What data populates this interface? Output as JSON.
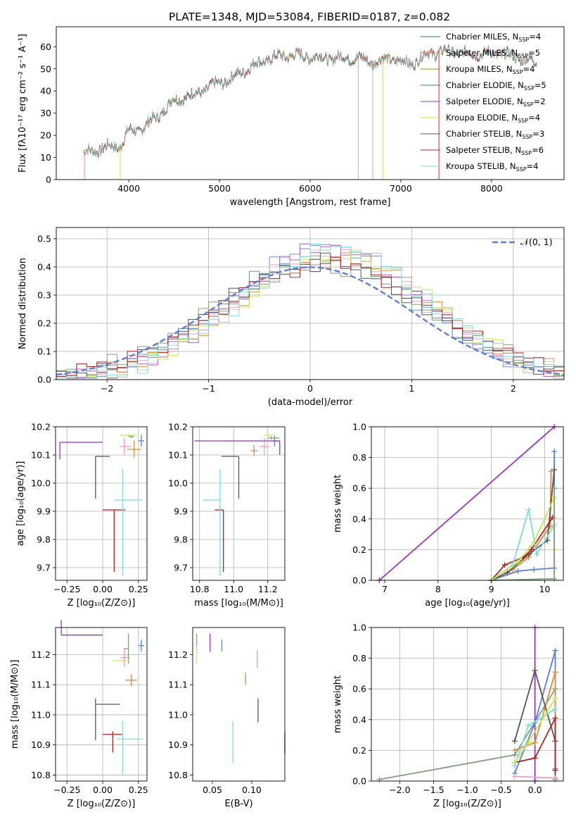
{
  "figure_title": "PLATE=1348, MJD=53084, FIBERID=0187, z=0.082",
  "model_colors": [
    "#1f77b4",
    "#ff7f7f",
    "#b8860b",
    "#2e8b57",
    "#9932cc",
    "#d4d434",
    "#555555",
    "#b22222",
    "#7fdbdb"
  ],
  "chart_data": [
    {
      "id": "spectrum",
      "type": "line",
      "xlabel": "wavelength [Angstrom, rest frame]",
      "ylabel": "Flux [fλ10⁻¹⁷ erg cm⁻² s⁻¹ A⁻¹]",
      "xlim": [
        3200,
        8800
      ],
      "ylim": [
        0,
        69
      ],
      "xticks": [
        4000,
        5000,
        6000,
        7000,
        8000
      ],
      "yticks": [
        0,
        10,
        20,
        30,
        40,
        50,
        60
      ],
      "grid": false,
      "legend": "right",
      "continuum_x": [
        3500,
        3800,
        3900,
        4000,
        4100,
        4300,
        4500,
        4700,
        4900,
        5100,
        5300,
        5500,
        5700,
        5900,
        6100,
        6300,
        6500,
        6700,
        6900,
        7100,
        7300,
        7500,
        7700,
        7900,
        8100,
        8300,
        8500
      ],
      "continuum_y": [
        12,
        15,
        15,
        22,
        22,
        28,
        36,
        38,
        42,
        45,
        50,
        54,
        56,
        56,
        55,
        55,
        55,
        53,
        55,
        52,
        57,
        58,
        57,
        57,
        57,
        55,
        53
      ],
      "legend_entries": [
        {
          "label": "Chabrier MILES, N",
          "sub": "SSP",
          "rest": "=4"
        },
        {
          "label": "Salpeter MILES, N",
          "sub": "SSP",
          "rest": "=5"
        },
        {
          "label": "Kroupa MILES, N",
          "sub": "SSP",
          "rest": "=4"
        },
        {
          "label": "Chabrier ELODIE, N",
          "sub": "SSP",
          "rest": "=5"
        },
        {
          "label": "Salpeter ELODIE, N",
          "sub": "SSP",
          "rest": "=2"
        },
        {
          "label": "Kroupa ELODIE, N",
          "sub": "SSP",
          "rest": "=4"
        },
        {
          "label": "Chabrier STELIB, N",
          "sub": "SSP",
          "rest": "=3"
        },
        {
          "label": "Salpeter STELIB, N",
          "sub": "SSP",
          "rest": "=6"
        },
        {
          "label": "Kroupa STELIB, N",
          "sub": "SSP",
          "rest": "=4"
        }
      ]
    },
    {
      "id": "residuals",
      "type": "line",
      "xlabel": "(data-model)/error",
      "ylabel": "Normed distribution",
      "xlim": [
        -2.5,
        2.5
      ],
      "ylim": [
        0,
        0.54
      ],
      "xticks": [
        -2,
        -1,
        0,
        1,
        2
      ],
      "yticks": [
        0.0,
        0.1,
        0.2,
        0.3,
        0.4,
        0.5
      ],
      "grid": true,
      "legend_label": "𝒩(0, 1)",
      "gaussian_color": "#5b7fd6",
      "hist_colors": [
        "#6a8fd8",
        "#f09ac6",
        "#e08a3c",
        "#7fa07f",
        "#a06bc0",
        "#c7e650",
        "#555555",
        "#b22222",
        "#7fdbdb"
      ]
    },
    {
      "id": "age_vs_Z",
      "type": "scatter",
      "xlabel": "Z [log₁₀(Z/Z⊙)]",
      "ylabel": "age  [log₁₀(age/yr)]",
      "xlim": [
        -0.33,
        0.31
      ],
      "ylim": [
        9.655,
        10.2
      ],
      "xticks": [
        -0.25,
        0.0,
        0.25
      ],
      "yticks": [
        9.7,
        9.8,
        9.9,
        10.0,
        10.1,
        10.2
      ],
      "grid": true,
      "points": [
        {
          "x": 0.27,
          "y": 10.15,
          "xe": [
            0.02,
            0.02
          ],
          "ye": [
            0.02,
            0.02
          ],
          "c": "#5b7fd6"
        },
        {
          "x": 0.22,
          "y": 10.12,
          "xe": [
            0.05,
            0.05
          ],
          "ye": [
            0.03,
            0.03
          ],
          "c": "#e08a3c"
        },
        {
          "x": 0.15,
          "y": 10.13,
          "xe": [
            0.03,
            0.05
          ],
          "ye": [
            0.03,
            0.03
          ],
          "c": "#f09ac6"
        },
        {
          "x": 0.2,
          "y": 10.165,
          "xe": [
            0.02,
            0.02
          ],
          "ye": [
            0.005,
            0.005
          ],
          "c": "#7fa07f"
        },
        {
          "x": 0.18,
          "y": 10.17,
          "xe": [
            0.06,
            0.06
          ],
          "ye": [
            0.005,
            0.005
          ],
          "c": "#c7e650"
        },
        {
          "x": -0.3,
          "y": 10.145,
          "xe": [
            0.0,
            0.3
          ],
          "ye": [
            0.06,
            0.0
          ],
          "c": "#9932cc"
        },
        {
          "x": -0.05,
          "y": 10.095,
          "xe": [
            0.0,
            0.1
          ],
          "ye": [
            0.15,
            0.0
          ],
          "c": "#555555"
        },
        {
          "x": 0.08,
          "y": 9.905,
          "xe": [
            0.08,
            0.08
          ],
          "ye": [
            0.22,
            0.0
          ],
          "c": "#b22222"
        },
        {
          "x": 0.14,
          "y": 9.94,
          "xe": [
            0.06,
            0.14
          ],
          "ye": [
            0.27,
            0.11
          ],
          "c": "#7fdbdb"
        }
      ]
    },
    {
      "id": "age_vs_mass",
      "type": "scatter",
      "xlabel": "mass [log₁₀(M/M⊙)]",
      "ylabel": "",
      "xlim": [
        10.76,
        11.3
      ],
      "ylim": [
        9.655,
        10.2
      ],
      "xticks": [
        10.8,
        11.0,
        11.2
      ],
      "yticks": [
        9.7,
        9.8,
        9.9,
        10.0,
        10.1,
        10.2
      ],
      "grid": true,
      "points": [
        {
          "x": 11.24,
          "y": 10.15,
          "xe": [
            0.02,
            0.03
          ],
          "ye": [
            0.02,
            0.02
          ],
          "c": "#5b7fd6"
        },
        {
          "x": 11.12,
          "y": 10.115,
          "xe": [
            0.02,
            0.02
          ],
          "ye": [
            0.02,
            0.02
          ],
          "c": "#e08a3c"
        },
        {
          "x": 11.18,
          "y": 10.13,
          "xe": [
            0.03,
            0.03
          ],
          "ye": [
            0.03,
            0.03
          ],
          "c": "#f09ac6"
        },
        {
          "x": 11.22,
          "y": 10.16,
          "xe": [
            0.02,
            0.05
          ],
          "ye": [
            0.005,
            0.005
          ],
          "c": "#7fa07f"
        },
        {
          "x": 11.2,
          "y": 10.17,
          "xe": [
            0.02,
            0.03
          ],
          "ye": [
            0.005,
            0.005
          ],
          "c": "#c7e650"
        },
        {
          "x": 11.27,
          "y": 10.15,
          "xe": [
            0.5,
            0.0
          ],
          "ye": [
            0.05,
            0.0
          ],
          "c": "#9932cc"
        },
        {
          "x": 11.03,
          "y": 10.095,
          "xe": [
            0.1,
            0.0
          ],
          "ye": [
            0.15,
            0.0
          ],
          "c": "#555555"
        },
        {
          "x": 10.94,
          "y": 9.905,
          "xe": [
            0.05,
            0.0
          ],
          "ye": [
            0.22,
            0.0
          ],
          "c": "#b22222"
        },
        {
          "x": 10.92,
          "y": 9.94,
          "xe": [
            0.1,
            0.0
          ],
          "ye": [
            0.27,
            0.11
          ],
          "c": "#7fdbdb"
        }
      ]
    },
    {
      "id": "mass_vs_Z",
      "type": "scatter",
      "xlabel": "Z [log₁₀(Z/Z⊙)]",
      "ylabel": "mass [log₁₀(M/M⊙)]",
      "xlim": [
        -0.33,
        0.31
      ],
      "ylim": [
        10.78,
        11.29
      ],
      "xticks": [
        -0.25,
        0.0,
        0.25
      ],
      "yticks": [
        10.8,
        10.9,
        11.0,
        11.1,
        11.2
      ],
      "grid": true,
      "points": [
        {
          "x": 0.27,
          "y": 11.23,
          "xe": [
            0.02,
            0.02
          ],
          "ye": [
            0.02,
            0.02
          ],
          "c": "#5b7fd6"
        },
        {
          "x": 0.2,
          "y": 11.115,
          "xe": [
            0.04,
            0.04
          ],
          "ye": [
            0.02,
            0.02
          ],
          "c": "#e08a3c"
        },
        {
          "x": 0.15,
          "y": 11.19,
          "xe": [
            0.03,
            0.04
          ],
          "ye": [
            0.03,
            0.03
          ],
          "c": "#f09ac6"
        },
        {
          "x": 0.18,
          "y": 11.22,
          "xe": [
            0.03,
            0.0
          ],
          "ye": [
            0.05,
            0.05
          ],
          "c": "#7fa07f"
        },
        {
          "x": 0.12,
          "y": 11.18,
          "xe": [
            0.05,
            0.05
          ],
          "ye": [
            0.0,
            0.0
          ],
          "c": "#c7e650"
        },
        {
          "x": -0.29,
          "y": 11.265,
          "xe": [
            0.0,
            0.29
          ],
          "ye": [
            0.0,
            0.05
          ],
          "c": "#9932cc"
        },
        {
          "x": -0.05,
          "y": 11.035,
          "xe": [
            0.0,
            0.17
          ],
          "ye": [
            0.12,
            0.02
          ],
          "c": "#555555"
        },
        {
          "x": 0.07,
          "y": 10.935,
          "xe": [
            0.07,
            0.07
          ],
          "ye": [
            0.06,
            0.01
          ],
          "c": "#b22222"
        },
        {
          "x": 0.14,
          "y": 10.92,
          "xe": [
            0.04,
            0.14
          ],
          "ye": [
            0.12,
            0.06
          ],
          "c": "#7fdbdb"
        }
      ]
    },
    {
      "id": "mass_vs_ebv",
      "type": "scatter",
      "xlabel": "E(B-V)",
      "ylabel": "",
      "xlim": [
        0.025,
        0.142
      ],
      "ylim": [
        10.78,
        11.29
      ],
      "xticks": [
        0.05,
        0.1
      ],
      "yticks": [
        10.8,
        10.9,
        11.0,
        11.1,
        11.2
      ],
      "grid": false,
      "points": [
        {
          "x": 0.062,
          "y": 11.23,
          "ye": [
            0.02,
            0.02
          ],
          "c": "#5b7fd6"
        },
        {
          "x": 0.092,
          "y": 11.12,
          "ye": [
            0.02,
            0.02
          ],
          "c": "#e08a3c"
        },
        {
          "x": 0.107,
          "y": 11.185,
          "ye": [
            0.03,
            0.03
          ],
          "c": "#f09ac6"
        },
        {
          "x": 0.03,
          "y": 11.24,
          "ye": [
            0.03,
            0.03
          ],
          "c": "#7fa07f"
        },
        {
          "x": 0.03,
          "y": 11.2,
          "ye": [
            0.03,
            0.03
          ],
          "c": "#c7e650"
        },
        {
          "x": 0.047,
          "y": 11.24,
          "ye": [
            0.03,
            0.03
          ],
          "c": "#9932cc"
        },
        {
          "x": 0.108,
          "y": 11.015,
          "ye": [
            0.04,
            0.04
          ],
          "c": "#555555"
        },
        {
          "x": 0.142,
          "y": 10.91,
          "ye": [
            0.04,
            0.03
          ],
          "c": "#b22222"
        },
        {
          "x": 0.076,
          "y": 10.91,
          "ye": [
            0.07,
            0.07
          ],
          "c": "#7fdbdb"
        }
      ]
    },
    {
      "id": "mw_vs_age",
      "type": "line",
      "xlabel": "age  [log₁₀(age/yr)]",
      "ylabel": "mass weight",
      "xlim": [
        6.75,
        10.35
      ],
      "ylim": [
        0,
        1.0
      ],
      "xticks": [
        7,
        8,
        9,
        10
      ],
      "yticks": [
        0.0,
        0.2,
        0.4,
        0.6,
        0.8,
        1.0
      ],
      "grid": true,
      "series": [
        {
          "c": "#9932cc",
          "x": [
            6.9,
            10.18
          ],
          "y": [
            0.0,
            1.0
          ]
        },
        {
          "c": "#5b7fd6",
          "x": [
            9.0,
            9.5,
            9.8,
            10.18,
            10.18
          ],
          "y": [
            0.0,
            0.06,
            0.07,
            0.08,
            0.84
          ]
        },
        {
          "c": "#e08a3c",
          "x": [
            9.0,
            9.4,
            9.7,
            10.1,
            10.12
          ],
          "y": [
            0.0,
            0.07,
            0.15,
            0.35,
            0.71
          ]
        },
        {
          "c": "#555555",
          "x": [
            9.0,
            9.3,
            9.7,
            10.05,
            10.18
          ],
          "y": [
            0.0,
            0.05,
            0.17,
            0.26,
            0.72
          ]
        },
        {
          "c": "#b22222",
          "x": [
            9.0,
            9.25,
            9.6,
            9.75,
            10.15
          ],
          "y": [
            0.0,
            0.1,
            0.15,
            0.2,
            0.41
          ]
        },
        {
          "c": "#7fdbdb",
          "x": [
            9.0,
            9.4,
            9.7,
            9.85,
            10.18
          ],
          "y": [
            0.0,
            0.1,
            0.46,
            0.17,
            0.36
          ]
        },
        {
          "c": "#c7e650",
          "x": [
            9.0,
            9.5,
            9.8,
            10.18,
            10.18
          ],
          "y": [
            0.0,
            0.12,
            0.25,
            0.54,
            0.2
          ]
        },
        {
          "c": "#7fa07f",
          "x": [
            9.0,
            10.18,
            10.18
          ],
          "y": [
            0.0,
            0.01,
            0.6
          ]
        }
      ]
    },
    {
      "id": "mw_vs_Z",
      "type": "line",
      "xlabel": "Z [log₁₀(Z/Z⊙)]",
      "ylabel": "mass weight",
      "xlim": [
        -2.42,
        0.42
      ],
      "ylim": [
        0,
        1.0
      ],
      "xticks": [
        -2.0,
        -1.5,
        -1.0,
        -0.5,
        0.0
      ],
      "yticks": [
        0.0,
        0.2,
        0.4,
        0.6,
        0.8,
        1.0
      ],
      "grid": true,
      "series": [
        {
          "c": "#7fa07f",
          "x": [
            -2.3,
            -0.3,
            0.3,
            0.3
          ],
          "y": [
            0.01,
            0.17,
            0.6,
            0.01
          ]
        },
        {
          "c": "#9932cc",
          "x": [
            0.0,
            0.0
          ],
          "y": [
            1.0,
            0.0
          ]
        },
        {
          "c": "#5b7fd6",
          "x": [
            -0.3,
            0.0,
            0.3,
            0.3
          ],
          "y": [
            0.05,
            0.38,
            0.85,
            0.08
          ]
        },
        {
          "c": "#e08a3c",
          "x": [
            -0.3,
            0.0,
            0.3,
            0.3
          ],
          "y": [
            0.2,
            0.25,
            0.71,
            0.07
          ]
        },
        {
          "c": "#555555",
          "x": [
            -0.3,
            0.0,
            0.3,
            0.3
          ],
          "y": [
            0.26,
            0.72,
            0.26,
            0.02
          ]
        },
        {
          "c": "#b22222",
          "x": [
            -0.3,
            0.0,
            0.3,
            0.3
          ],
          "y": [
            0.12,
            0.15,
            0.41,
            0.07
          ]
        },
        {
          "c": "#7fdbdb",
          "x": [
            -0.3,
            -0.1,
            0.3
          ],
          "y": [
            0.1,
            0.36,
            0.47
          ]
        },
        {
          "c": "#c7e650",
          "x": [
            -0.3,
            -0.1,
            0.3
          ],
          "y": [
            0.12,
            0.25,
            0.54
          ]
        },
        {
          "c": "#f09ac6",
          "x": [
            -0.3,
            0.3
          ],
          "y": [
            0.03,
            0.02
          ]
        }
      ]
    }
  ]
}
